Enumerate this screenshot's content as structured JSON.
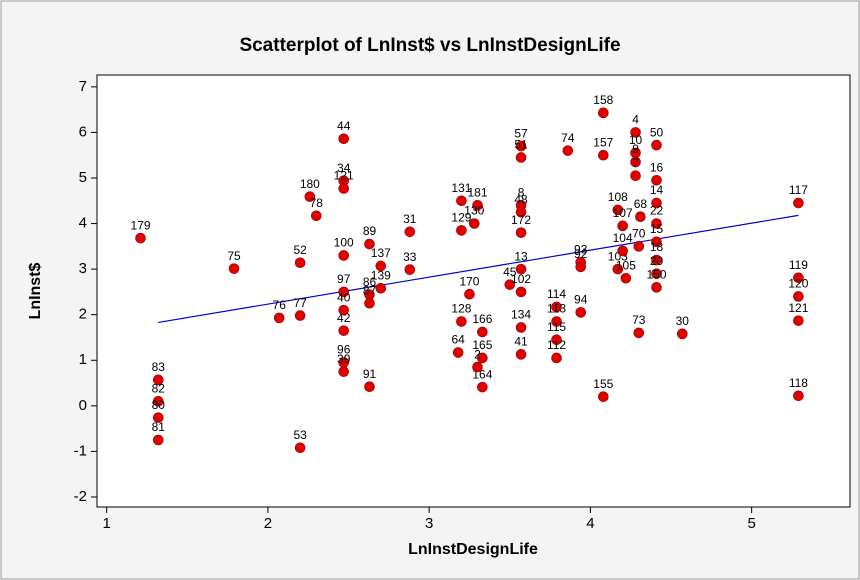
{
  "chart_data": {
    "type": "scatter",
    "title": "Scatterplot of LnInst$ vs LnInstDesignLife",
    "x_label": "LnInstDesignLife",
    "y_label": "LnInst$",
    "xlim": [
      0.94,
      5.61
    ],
    "ylim": [
      -2.22,
      7.26
    ],
    "xticks": [
      1,
      2,
      3,
      4,
      5
    ],
    "yticks": [
      -2,
      -1,
      0,
      1,
      2,
      3,
      4,
      5,
      6,
      7
    ],
    "color": "#e00000",
    "line_color": "#0000cc",
    "x": [
      1.32,
      1.32,
      1.32,
      1.32,
      1.21,
      1.79,
      2.07,
      2.2,
      2.2,
      2.2,
      2.26,
      2.3,
      2.47,
      2.47,
      2.47,
      2.47,
      2.47,
      2.47,
      2.47,
      2.47,
      2.47,
      2.63,
      2.63,
      2.63,
      2.63,
      2.7,
      2.7,
      2.88,
      2.88,
      3.2,
      3.3,
      3.28,
      3.2,
      3.2,
      3.18,
      3.25,
      3.33,
      3.33,
      3.33,
      3.3,
      3.5,
      3.57,
      3.57,
      3.57,
      3.57,
      3.57,
      3.57,
      3.57,
      3.57,
      3.57,
      3.86,
      3.79,
      3.79,
      3.79,
      3.79,
      3.94,
      3.94,
      3.94,
      4.08,
      4.08,
      4.08,
      4.17,
      4.2,
      4.17,
      4.2,
      4.22,
      4.28,
      4.28,
      4.28,
      4.28,
      4.31,
      4.41,
      4.41,
      4.41,
      4.41,
      4.41,
      4.3,
      4.41,
      4.41,
      4.41,
      4.3,
      4.57,
      5.29,
      5.29,
      5.29,
      5.29,
      5.29
    ],
    "y": [
      0.57,
      0.1,
      -0.26,
      -0.75,
      3.68,
      3.01,
      1.93,
      1.98,
      3.14,
      -0.92,
      4.59,
      4.17,
      5.86,
      4.94,
      4.77,
      3.3,
      2.5,
      2.1,
      1.65,
      0.95,
      0.75,
      3.55,
      2.44,
      2.25,
      0.42,
      3.07,
      2.58,
      3.82,
      2.99,
      4.5,
      4.4,
      4.0,
      3.85,
      1.85,
      1.17,
      2.45,
      1.62,
      1.05,
      0.41,
      0.85,
      2.66,
      5.7,
      5.45,
      4.4,
      4.25,
      3.8,
      3.0,
      2.5,
      1.72,
      1.13,
      5.6,
      2.17,
      1.85,
      1.45,
      1.05,
      3.15,
      3.05,
      2.05,
      0.2,
      6.43,
      5.5,
      4.3,
      3.95,
      3.0,
      3.4,
      2.8,
      6.0,
      5.55,
      5.35,
      5.05,
      4.15,
      5.72,
      4.95,
      4.45,
      4.0,
      3.6,
      3.5,
      3.2,
      2.9,
      2.6,
      1.6,
      1.58,
      4.45,
      2.81,
      2.4,
      1.87,
      0.22
    ],
    "labels": [
      "83",
      "82",
      "80",
      "81",
      "179",
      "75",
      "76",
      "77",
      "52",
      "53",
      "180",
      "78",
      "44",
      "34",
      "121",
      "100",
      "97",
      "40",
      "42",
      "96",
      "39",
      "89",
      "86",
      "87",
      "91",
      "137",
      "139",
      "31",
      "33",
      "131",
      "181",
      "130",
      "129",
      "128",
      "64",
      "170",
      "166",
      "165",
      "164",
      "2",
      "45",
      "57",
      "51",
      "8",
      "48",
      "172",
      "13",
      "102",
      "134",
      "41",
      "74",
      "114",
      "113",
      "115",
      "112",
      "93",
      "92",
      "94",
      "155",
      "158",
      "157",
      "108",
      "107",
      "103",
      "104",
      "105",
      "4",
      "10",
      "9",
      "7",
      "68",
      "50",
      "16",
      "14",
      "22",
      "15",
      "70",
      "18",
      "20",
      "150",
      "73",
      "30",
      "117",
      "119",
      "120",
      "121",
      "118"
    ],
    "fit_line": {
      "x": [
        1.32,
        5.29
      ],
      "y": [
        1.83,
        4.18
      ]
    }
  }
}
